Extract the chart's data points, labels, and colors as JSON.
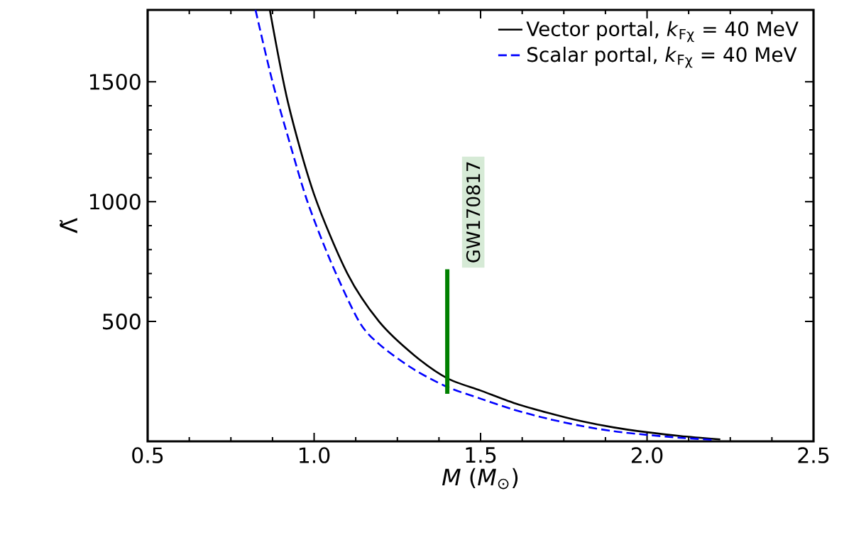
{
  "chart_data": {
    "type": "line",
    "xlabel": "*M* (*M*$_{⊙}$)",
    "ylabel": "Λ̃",
    "xlim": [
      0.5,
      2.5
    ],
    "ylim": [
      0,
      1800
    ],
    "xticks": [
      0.5,
      {
        "value": 1,
        "label": "1.0"
      },
      1.5,
      {
        "value": 2,
        "label": "2.0"
      },
      2.5
    ],
    "yticks": [
      500,
      1000,
      1500
    ],
    "legend": "top right",
    "grid": false,
    "marker": "none",
    "annotations": [
      "GW170817"
    ],
    "series": [
      {
        "name": "Vector portal, *k*$_{Fχ}$ = 40 MeV",
        "color": "#000000",
        "line_style": "solid",
        "x": [
          0.867,
          0.922,
          1.0,
          1.1,
          1.195,
          1.3,
          1.4,
          1.5,
          1.6,
          1.7,
          1.8,
          1.9,
          2.0,
          2.1,
          2.22
        ],
        "values": [
          1800,
          1411,
          1030,
          700,
          500,
          360,
          263,
          212,
          160,
          120,
          85,
          58,
          38,
          22,
          8
        ]
      },
      {
        "name": "Scalar portal, *k*$_{Fχ}$ = 40 MeV",
        "color": "#0000ff",
        "line_style": "dashed",
        "x": [
          0.824,
          0.875,
          0.93,
          0.98,
          1.05,
          1.135,
          1.2,
          1.3,
          1.4,
          1.5,
          1.6,
          1.7,
          1.8,
          1.9,
          2.0,
          2.1,
          2.2
        ],
        "values": [
          1800,
          1500,
          1230,
          1000,
          750,
          500,
          400,
          300,
          227,
          178,
          132,
          95,
          65,
          42,
          27,
          15,
          6
        ]
      },
      {
        "color": "#008000",
        "line_style": "solid",
        "x": [
          1.4,
          1.4
        ],
        "values": [
          198,
          718
        ]
      }
    ]
  }
}
